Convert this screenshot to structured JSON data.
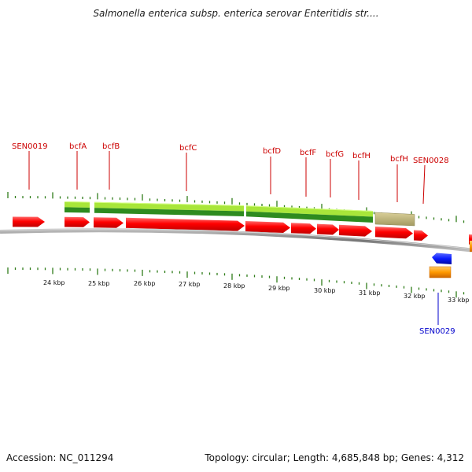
{
  "title": "Salmonella enterica subsp. enterica serovar Enteritidis str....",
  "footer": {
    "accession": "Accession: NC_011294",
    "topology": "Topology: circular; Length: 4,685,848 bp; Genes: 4,312"
  },
  "colors": {
    "gene_forward": "#ff0000",
    "gene_reverse": "#0a1cff",
    "rna": "#ff9900",
    "operon_green_dark": "#2e8b1f",
    "operon_green_light": "#a8e63a",
    "operon_tan": "#bdb278",
    "tick": "#2f7d1a",
    "backbone": "#888888",
    "label_red": "#cc0000",
    "label_blue": "#0000cc"
  },
  "gene_labels": [
    {
      "text": "SEN0019",
      "strand": "top"
    },
    {
      "text": "bcfA",
      "strand": "top"
    },
    {
      "text": "bcfB",
      "strand": "top"
    },
    {
      "text": "bcfC",
      "strand": "top"
    },
    {
      "text": "bcfD",
      "strand": "top"
    },
    {
      "text": "bcfF",
      "strand": "top"
    },
    {
      "text": "bcfG",
      "strand": "top"
    },
    {
      "text": "bcfH",
      "strand": "top"
    },
    {
      "text": "bcfH",
      "strand": "top"
    },
    {
      "text": "SEN0028",
      "strand": "top"
    },
    {
      "text": "SEN0029",
      "strand": "bottom"
    }
  ],
  "kbp_labels": [
    "24 kbp",
    "25 kbp",
    "26 kbp",
    "27 kbp",
    "28 kbp",
    "29 kbp",
    "30 kbp",
    "31 kbp",
    "32 kbp",
    "33 kbp"
  ]
}
